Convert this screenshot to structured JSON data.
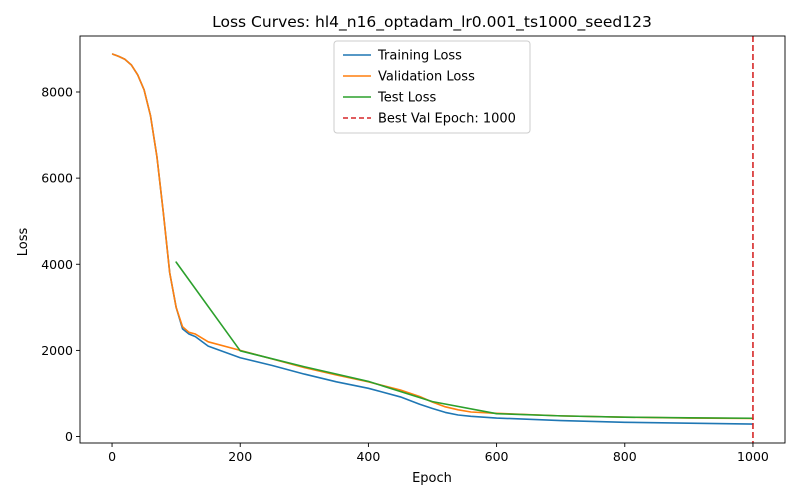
{
  "chart_data": {
    "type": "line",
    "title": "Loss Curves: hl4_n16_optadam_lr0.001_ts1000_seed123",
    "xlabel": "Epoch",
    "ylabel": "Loss",
    "xlim": [
      -50,
      1050
    ],
    "ylim": [
      -150,
      9300
    ],
    "xticks": [
      0,
      200,
      400,
      600,
      800,
      1000
    ],
    "yticks": [
      0,
      2000,
      4000,
      6000,
      8000
    ],
    "grid": false,
    "legend_position": "top-center",
    "series": [
      {
        "name": "Training Loss",
        "color": "#1f77b4",
        "x": [
          1,
          10,
          20,
          30,
          40,
          50,
          60,
          70,
          80,
          90,
          100,
          110,
          120,
          130,
          150,
          200,
          250,
          300,
          350,
          400,
          450,
          480,
          500,
          520,
          540,
          560,
          600,
          700,
          800,
          900,
          1000
        ],
        "y": [
          8880,
          8830,
          8760,
          8630,
          8400,
          8050,
          7450,
          6500,
          5200,
          3800,
          3000,
          2500,
          2380,
          2320,
          2100,
          1830,
          1650,
          1450,
          1270,
          1120,
          920,
          750,
          650,
          560,
          500,
          470,
          430,
          370,
          330,
          310,
          290
        ]
      },
      {
        "name": "Validation Loss",
        "color": "#ff7f0e",
        "x": [
          1,
          10,
          20,
          30,
          40,
          50,
          60,
          70,
          80,
          90,
          100,
          110,
          120,
          130,
          150,
          200,
          250,
          300,
          350,
          400,
          450,
          480,
          500,
          520,
          540,
          560,
          600,
          700,
          800,
          900,
          1000
        ],
        "y": [
          8880,
          8830,
          8760,
          8630,
          8400,
          8050,
          7450,
          6500,
          5200,
          3800,
          3000,
          2550,
          2420,
          2380,
          2200,
          2000,
          1800,
          1600,
          1430,
          1270,
          1080,
          930,
          800,
          690,
          620,
          570,
          540,
          480,
          450,
          430,
          420
        ]
      },
      {
        "name": "Test Loss",
        "color": "#2ca02c",
        "x": [
          100,
          200,
          300,
          400,
          500,
          600,
          700,
          800,
          900,
          1000
        ],
        "y": [
          4050,
          1990,
          1620,
          1280,
          810,
          530,
          480,
          450,
          435,
          425
        ]
      }
    ],
    "vlines": [
      {
        "name": "Best Val Epoch: 1000",
        "x": 1000,
        "color": "#d62728",
        "style": "dashed"
      }
    ]
  }
}
